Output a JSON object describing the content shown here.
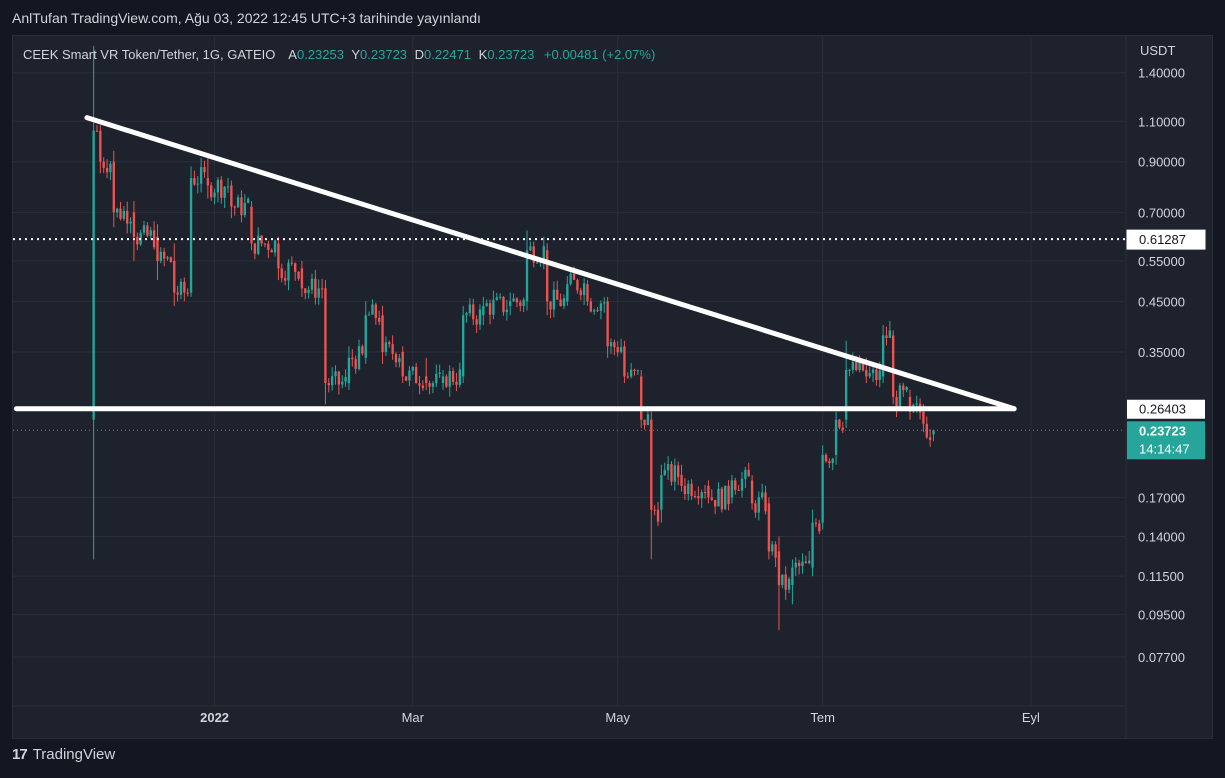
{
  "publish_line": "AnlTufan TradingView.com, Ağu 03, 2022 12:45 UTC+3 tarihinde yayınlandı",
  "brand": {
    "name": "TradingView",
    "logo_text": "17"
  },
  "chart_data": {
    "type": "candlestick",
    "scale": "log",
    "currency_label": "USDT",
    "symbol_line": {
      "symbol": "CEEK Smart VR Token/Tether, 1G, GATEIO",
      "open_label": "A",
      "open": "0.23253",
      "high_label": "Y",
      "high": "0.23723",
      "low_label": "D",
      "low": "0.22471",
      "close_label": "K",
      "close": "0.23723",
      "change": "+0.00481 (+2.07%)"
    },
    "y_ticks": [
      "1.40000",
      "1.10000",
      "0.90000",
      "0.70000",
      "0.55000",
      "0.45000",
      "0.35000",
      "0.17000",
      "0.14000",
      "0.11500",
      "0.09500",
      "0.07700"
    ],
    "x_ticks": [
      "2022",
      "Mar",
      "May",
      "Tem",
      "Eyl"
    ],
    "x_tick_dates": [
      "2022-01-01",
      "2022-03-01",
      "2022-05-01",
      "2022-07-01",
      "2022-09-01"
    ],
    "ylim": [
      0.066,
      1.68
    ],
    "xlim": [
      "2021-11-02",
      "2022-09-29"
    ],
    "price_labels": {
      "dotted_level": "0.61287",
      "support_level": "0.26403",
      "last_price": "0.23723",
      "countdown": "14:14:47"
    },
    "lines": [
      {
        "kind": "trendline",
        "from": [
          "2021-11-24",
          1.12
        ],
        "to": [
          "2022-08-27",
          0.264
        ]
      },
      {
        "kind": "horizontal",
        "from": [
          "2021-11-03",
          0.264
        ],
        "to": [
          "2022-08-27",
          0.264
        ]
      }
    ],
    "ohlc_keypoints": [
      [
        "2021-11-26",
        0.25,
        1.6,
        0.125,
        1.05
      ],
      [
        "2021-11-28",
        1.05,
        1.08,
        0.85,
        0.9
      ],
      [
        "2021-12-02",
        0.9,
        0.95,
        0.65,
        0.7
      ],
      [
        "2021-12-08",
        0.7,
        0.74,
        0.55,
        0.62
      ],
      [
        "2021-12-15",
        0.62,
        0.66,
        0.5,
        0.55
      ],
      [
        "2021-12-20",
        0.55,
        0.6,
        0.44,
        0.47
      ],
      [
        "2021-12-25",
        0.47,
        0.88,
        0.46,
        0.83
      ],
      [
        "2021-12-30",
        0.83,
        0.92,
        0.75,
        0.8
      ],
      [
        "2022-01-06",
        0.8,
        0.82,
        0.68,
        0.72
      ],
      [
        "2022-01-12",
        0.72,
        0.74,
        0.58,
        0.6
      ],
      [
        "2022-01-20",
        0.6,
        0.62,
        0.5,
        0.53
      ],
      [
        "2022-01-27",
        0.53,
        0.55,
        0.46,
        0.48
      ],
      [
        "2022-02-03",
        0.48,
        0.5,
        0.27,
        0.3
      ],
      [
        "2022-02-10",
        0.3,
        0.36,
        0.29,
        0.34
      ],
      [
        "2022-02-15",
        0.34,
        0.45,
        0.33,
        0.42
      ],
      [
        "2022-02-20",
        0.42,
        0.44,
        0.33,
        0.35
      ],
      [
        "2022-02-26",
        0.35,
        0.36,
        0.3,
        0.31
      ],
      [
        "2022-03-05",
        0.31,
        0.34,
        0.29,
        0.3
      ],
      [
        "2022-03-10",
        0.3,
        0.32,
        0.29,
        0.31
      ],
      [
        "2022-03-16",
        0.31,
        0.44,
        0.3,
        0.42
      ],
      [
        "2022-03-22",
        0.42,
        0.46,
        0.4,
        0.44
      ],
      [
        "2022-03-30",
        0.44,
        0.47,
        0.42,
        0.45
      ],
      [
        "2022-04-04",
        0.45,
        0.64,
        0.43,
        0.58
      ],
      [
        "2022-04-10",
        0.58,
        0.6,
        0.42,
        0.45
      ],
      [
        "2022-04-16",
        0.45,
        0.51,
        0.44,
        0.49
      ],
      [
        "2022-04-22",
        0.49,
        0.5,
        0.44,
        0.45
      ],
      [
        "2022-04-28",
        0.45,
        0.46,
        0.34,
        0.36
      ],
      [
        "2022-05-03",
        0.36,
        0.37,
        0.3,
        0.31
      ],
      [
        "2022-05-08",
        0.31,
        0.32,
        0.24,
        0.25
      ],
      [
        "2022-05-11",
        0.25,
        0.26,
        0.125,
        0.16
      ],
      [
        "2022-05-14",
        0.16,
        0.2,
        0.15,
        0.19
      ],
      [
        "2022-05-20",
        0.19,
        0.2,
        0.175,
        0.18
      ],
      [
        "2022-05-28",
        0.18,
        0.185,
        0.165,
        0.17
      ],
      [
        "2022-06-04",
        0.17,
        0.19,
        0.165,
        0.185
      ],
      [
        "2022-06-10",
        0.185,
        0.19,
        0.16,
        0.165
      ],
      [
        "2022-06-15",
        0.165,
        0.17,
        0.125,
        0.13
      ],
      [
        "2022-06-18",
        0.13,
        0.14,
        0.088,
        0.11
      ],
      [
        "2022-06-22",
        0.11,
        0.125,
        0.1,
        0.12
      ],
      [
        "2022-06-28",
        0.12,
        0.16,
        0.115,
        0.15
      ],
      [
        "2022-07-01",
        0.15,
        0.22,
        0.145,
        0.21
      ],
      [
        "2022-07-05",
        0.21,
        0.26,
        0.2,
        0.25
      ],
      [
        "2022-07-08",
        0.25,
        0.37,
        0.24,
        0.32
      ],
      [
        "2022-07-14",
        0.32,
        0.34,
        0.3,
        0.31
      ],
      [
        "2022-07-19",
        0.31,
        0.4,
        0.3,
        0.38
      ],
      [
        "2022-07-22",
        0.38,
        0.39,
        0.27,
        0.28
      ],
      [
        "2022-07-27",
        0.28,
        0.29,
        0.25,
        0.26
      ],
      [
        "2022-07-31",
        0.26,
        0.27,
        0.235,
        0.245
      ],
      [
        "2022-08-03",
        0.23253,
        0.23723,
        0.22471,
        0.23723
      ]
    ]
  },
  "colors": {
    "background": "#131722",
    "panel": "#1e222d",
    "grid": "#2a2e39",
    "up": "#26a69a",
    "down": "#ef5350",
    "text": "#d1d4dc",
    "line": "#ffffff"
  }
}
